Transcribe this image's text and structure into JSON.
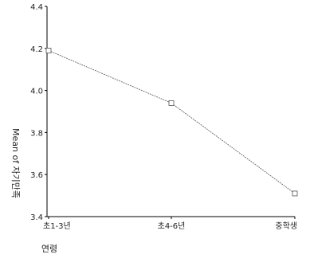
{
  "chart_data": {
    "type": "line",
    "title": "",
    "xlabel": "연령",
    "ylabel": "Mean of 자기만족",
    "categories": [
      "초1-3년",
      "초4-6년",
      "중학생"
    ],
    "series": [
      {
        "values": [
          4.19,
          3.94,
          3.51
        ]
      }
    ],
    "ylim": [
      3.4,
      4.4
    ],
    "yticks": [
      "4.4",
      "4.2",
      "4.0",
      "3.8",
      "3.6",
      "3.4"
    ],
    "ytick_values": [
      4.4,
      4.2,
      4.0,
      3.8,
      3.6,
      3.4
    ],
    "grid": false,
    "legend": "none",
    "colors": {
      "line": "#555555",
      "marker": "#555555",
      "axis": "#000000",
      "text": "#222222"
    }
  }
}
